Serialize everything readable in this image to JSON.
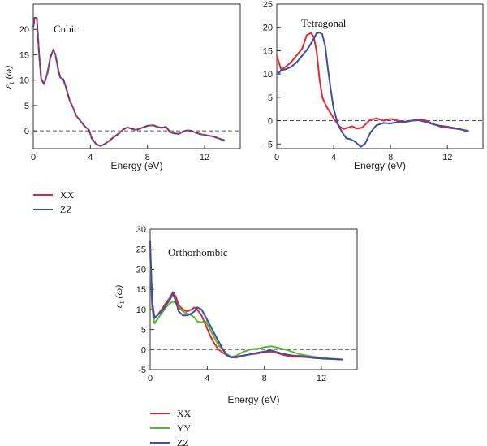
{
  "chart_data": [
    {
      "type": "line",
      "title": "Cubic",
      "xlabel": "Energy (eV)",
      "ylabel": "ε1 (ω)",
      "xlim": [
        0,
        14.5
      ],
      "ylim": [
        -3.5,
        25
      ],
      "xticks": [
        0,
        4,
        8,
        12
      ],
      "yticks": [
        -5,
        0,
        5,
        10,
        15,
        20
      ],
      "reference_line": 0,
      "series": [
        {
          "name": "XX",
          "color": "#e8262d",
          "x": [
            0.0,
            0.1,
            0.25,
            0.4,
            0.55,
            0.75,
            1.0,
            1.2,
            1.4,
            1.55,
            1.75,
            1.9,
            2.1,
            2.3,
            2.55,
            2.8,
            3.0,
            3.3,
            3.6,
            3.9,
            4.1,
            4.4,
            4.7,
            5.0,
            5.3,
            5.6,
            6.0,
            6.3,
            6.6,
            6.9,
            7.2,
            7.6,
            8.0,
            8.4,
            8.7,
            9.0,
            9.3,
            9.6,
            9.9,
            10.2,
            10.5,
            10.8,
            11.1,
            11.4,
            11.8,
            12.2,
            12.6,
            13.0,
            13.4
          ],
          "y": [
            20.5,
            22.3,
            22.2,
            15.5,
            10.3,
            9.2,
            11.5,
            14.5,
            16.0,
            15.0,
            12.0,
            10.5,
            10.2,
            8.5,
            6.0,
            4.5,
            3.0,
            2.0,
            0.9,
            0.2,
            -1.5,
            -2.6,
            -3.0,
            -2.6,
            -2.0,
            -1.3,
            -0.5,
            0.3,
            0.7,
            0.4,
            0.2,
            0.6,
            1.0,
            1.1,
            0.8,
            0.6,
            0.8,
            -0.3,
            -0.5,
            -0.6,
            -0.1,
            0.1,
            0.0,
            -0.4,
            -0.7,
            -0.9,
            -1.1,
            -1.5,
            -1.9
          ]
        },
        {
          "name": "ZZ",
          "color": "#3b4fa3",
          "x": [
            0.0,
            0.1,
            0.25,
            0.4,
            0.55,
            0.75,
            1.0,
            1.2,
            1.4,
            1.55,
            1.75,
            1.9,
            2.1,
            2.3,
            2.55,
            2.8,
            3.0,
            3.3,
            3.6,
            3.9,
            4.1,
            4.4,
            4.7,
            5.0,
            5.3,
            5.6,
            6.0,
            6.3,
            6.6,
            6.9,
            7.2,
            7.6,
            8.0,
            8.4,
            8.7,
            9.0,
            9.3,
            9.6,
            9.9,
            10.2,
            10.5,
            10.8,
            11.1,
            11.4,
            11.8,
            12.2,
            12.6,
            13.0,
            13.4
          ],
          "y": [
            20.5,
            22.3,
            22.2,
            15.5,
            10.3,
            9.2,
            11.5,
            14.5,
            16.0,
            15.0,
            12.0,
            10.5,
            10.2,
            8.5,
            6.0,
            4.5,
            3.0,
            2.0,
            0.9,
            0.2,
            -1.5,
            -2.6,
            -3.0,
            -2.6,
            -2.0,
            -1.3,
            -0.5,
            0.3,
            0.7,
            0.4,
            0.2,
            0.6,
            1.0,
            1.1,
            0.8,
            0.6,
            0.8,
            -0.3,
            -0.5,
            -0.6,
            -0.1,
            0.1,
            0.0,
            -0.4,
            -0.7,
            -0.9,
            -1.1,
            -1.5,
            -1.9
          ]
        }
      ]
    },
    {
      "type": "line",
      "title": "Tetragonal",
      "xlabel": "Energy (eV)",
      "ylabel": "",
      "xlim": [
        0,
        14.5
      ],
      "ylim": [
        -6,
        25
      ],
      "xticks": [
        0,
        4,
        8,
        12
      ],
      "yticks": [
        -5,
        0,
        5,
        10,
        15,
        20,
        25
      ],
      "reference_line": 0,
      "series": [
        {
          "name": "XX",
          "color": "#e8262d",
          "x": [
            0.0,
            0.15,
            0.3,
            0.6,
            1.0,
            1.4,
            1.8,
            2.1,
            2.4,
            2.6,
            2.8,
            3.0,
            3.2,
            3.5,
            3.8,
            4.1,
            4.4,
            4.7,
            5.0,
            5.3,
            5.6,
            6.0,
            6.5,
            7.0,
            7.5,
            8.0,
            8.5,
            9.0,
            9.5,
            10.0,
            10.5,
            11.0,
            11.5,
            12.0,
            12.5,
            13.0,
            13.5
          ],
          "y": [
            14.0,
            12.5,
            11.0,
            11.5,
            12.5,
            14.0,
            15.5,
            18.3,
            18.8,
            18.0,
            15.0,
            9.0,
            5.0,
            3.0,
            1.5,
            0.0,
            -1.2,
            -1.8,
            -1.5,
            -1.2,
            -1.7,
            -1.5,
            0.0,
            0.5,
            0.0,
            0.4,
            0.0,
            -0.3,
            0.0,
            0.3,
            0.0,
            -0.7,
            -1.3,
            -1.5,
            -1.7,
            -1.9,
            -2.2
          ]
        },
        {
          "name": "ZZ",
          "color": "#3b4fa3",
          "x": [
            0.0,
            0.15,
            0.3,
            0.6,
            1.0,
            1.4,
            1.8,
            2.2,
            2.5,
            2.8,
            3.0,
            3.2,
            3.4,
            3.6,
            3.8,
            4.0,
            4.3,
            4.6,
            4.9,
            5.2,
            5.5,
            5.9,
            6.2,
            6.6,
            7.0,
            7.5,
            8.0,
            8.5,
            9.0,
            9.5,
            10.0,
            10.5,
            11.0,
            11.5,
            12.0,
            12.5,
            13.0,
            13.5
          ],
          "y": [
            10.5,
            10.2,
            10.8,
            11.0,
            11.5,
            12.5,
            14.0,
            15.5,
            17.0,
            18.7,
            18.9,
            18.5,
            16.0,
            11.0,
            6.5,
            2.5,
            -0.8,
            -2.5,
            -3.8,
            -4.0,
            -4.5,
            -5.6,
            -5.0,
            -2.5,
            -1.0,
            -0.5,
            -0.6,
            -0.3,
            -0.2,
            0.0,
            0.1,
            -0.3,
            -0.8,
            -1.1,
            -1.3,
            -1.6,
            -1.9,
            -2.4
          ]
        }
      ]
    },
    {
      "type": "line",
      "title": "Orthorhombic",
      "xlabel": "Energy (eV)",
      "ylabel": "ε1 (ω)",
      "xlim": [
        0,
        14.5
      ],
      "ylim": [
        -5,
        30
      ],
      "xticks": [
        0,
        4,
        8,
        12
      ],
      "yticks": [
        -5,
        0,
        5,
        10,
        15,
        20,
        25,
        30
      ],
      "reference_line": 0,
      "series": [
        {
          "name": "XX",
          "color": "#e8262d",
          "x": [
            0.0,
            0.05,
            0.15,
            0.3,
            0.5,
            0.8,
            1.1,
            1.4,
            1.6,
            1.8,
            2.0,
            2.3,
            2.6,
            2.9,
            3.1,
            3.3,
            3.6,
            3.9,
            4.2,
            4.5,
            4.8,
            5.1,
            5.4,
            5.7,
            6.0,
            6.5,
            7.0,
            7.5,
            8.0,
            8.5,
            9.0,
            9.5,
            10.0,
            10.5,
            11.0,
            11.5,
            12.0,
            12.5,
            13.0,
            13.5
          ],
          "y": [
            26.5,
            20.0,
            12.0,
            8.0,
            8.5,
            10.0,
            11.5,
            13.0,
            14.3,
            13.2,
            11.0,
            10.0,
            9.5,
            10.0,
            10.5,
            10.0,
            8.5,
            6.0,
            3.5,
            1.5,
            0.0,
            -0.8,
            -1.5,
            -1.9,
            -2.0,
            -1.6,
            -1.2,
            -1.0,
            -0.6,
            -0.5,
            -1.0,
            -1.5,
            -1.8,
            -1.8,
            -1.9,
            -2.1,
            -2.2,
            -2.3,
            -2.4,
            -2.5
          ]
        },
        {
          "name": "YY",
          "color": "#5ab232",
          "x": [
            0.0,
            0.05,
            0.15,
            0.3,
            0.5,
            0.8,
            1.1,
            1.4,
            1.6,
            1.8,
            2.0,
            2.3,
            2.6,
            2.9,
            3.1,
            3.3,
            3.6,
            3.9,
            4.2,
            4.5,
            4.8,
            5.1,
            5.4,
            5.7,
            6.0,
            6.5,
            7.0,
            7.5,
            8.0,
            8.5,
            9.0,
            9.5,
            10.0,
            10.5,
            11.0,
            11.5,
            12.0,
            12.5,
            13.0,
            13.5
          ],
          "y": [
            24.0,
            18.0,
            10.0,
            6.5,
            7.5,
            9.0,
            10.5,
            11.5,
            12.0,
            11.5,
            10.5,
            9.5,
            9.0,
            8.5,
            8.0,
            7.0,
            6.8,
            7.0,
            5.0,
            3.0,
            1.0,
            0.0,
            -1.2,
            -1.8,
            -1.6,
            -0.6,
            0.0,
            0.2,
            0.6,
            0.8,
            0.4,
            0.0,
            -0.6,
            -1.2,
            -1.5,
            -1.8,
            -2.0,
            -2.2,
            -2.3,
            -2.5
          ]
        },
        {
          "name": "ZZ",
          "color": "#3b4fa3",
          "x": [
            0.0,
            0.05,
            0.15,
            0.3,
            0.5,
            0.8,
            1.1,
            1.4,
            1.6,
            1.8,
            2.0,
            2.3,
            2.6,
            2.9,
            3.1,
            3.3,
            3.6,
            3.9,
            4.2,
            4.5,
            4.8,
            5.1,
            5.4,
            5.7,
            6.0,
            6.5,
            7.0,
            7.5,
            8.0,
            8.5,
            9.0,
            9.5,
            10.0,
            10.5,
            11.0,
            11.5,
            12.0,
            12.5,
            13.0,
            13.5
          ],
          "y": [
            27.0,
            21.0,
            11.0,
            7.8,
            8.5,
            9.5,
            11.0,
            12.5,
            14.0,
            12.0,
            9.5,
            8.5,
            8.5,
            9.0,
            9.5,
            10.5,
            10.0,
            8.0,
            6.0,
            4.0,
            2.0,
            0.0,
            -1.5,
            -2.0,
            -1.8,
            -1.5,
            -1.2,
            -0.8,
            -0.5,
            -0.2,
            -0.8,
            -1.2,
            -1.5,
            -1.6,
            -1.8,
            -2.0,
            -2.2,
            -2.3,
            -2.4,
            -2.5
          ]
        }
      ]
    }
  ]
}
